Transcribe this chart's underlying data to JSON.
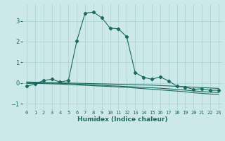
{
  "xlabel": "Humidex (Indice chaleur)",
  "background_color": "#cce8e8",
  "grid_color": "#aed4d4",
  "line_color": "#1a6b5e",
  "line1": [
    -0.15,
    -0.05,
    0.12,
    0.18,
    0.05,
    0.12,
    2.02,
    3.37,
    3.42,
    3.15,
    2.65,
    2.62,
    2.22,
    0.5,
    0.28,
    0.18,
    0.3,
    0.1,
    -0.15,
    -0.2,
    -0.3,
    -0.28,
    -0.35,
    -0.35
  ],
  "line2": [
    0.05,
    0.04,
    0.03,
    0.02,
    0.01,
    0.0,
    -0.01,
    -0.02,
    -0.03,
    -0.04,
    -0.05,
    -0.06,
    -0.07,
    -0.08,
    -0.09,
    -0.1,
    -0.12,
    -0.14,
    -0.16,
    -0.18,
    -0.2,
    -0.22,
    -0.24,
    -0.26
  ],
  "line3": [
    0.02,
    0.01,
    0.0,
    -0.01,
    -0.02,
    -0.03,
    -0.05,
    -0.07,
    -0.09,
    -0.11,
    -0.13,
    -0.15,
    -0.17,
    -0.19,
    -0.21,
    -0.23,
    -0.25,
    -0.28,
    -0.31,
    -0.34,
    -0.38,
    -0.41,
    -0.44,
    -0.46
  ],
  "line4": [
    -0.02,
    -0.02,
    -0.03,
    -0.04,
    -0.05,
    -0.07,
    -0.09,
    -0.11,
    -0.13,
    -0.15,
    -0.17,
    -0.19,
    -0.21,
    -0.24,
    -0.27,
    -0.3,
    -0.33,
    -0.36,
    -0.39,
    -0.42,
    -0.47,
    -0.5,
    -0.53,
    -0.55
  ],
  "xlim": [
    -0.5,
    23.5
  ],
  "ylim": [
    -1.3,
    3.8
  ],
  "yticks": [
    -1,
    0,
    1,
    2,
    3
  ],
  "xticks": [
    0,
    1,
    2,
    3,
    4,
    5,
    6,
    7,
    8,
    9,
    10,
    11,
    12,
    13,
    14,
    15,
    16,
    17,
    18,
    19,
    20,
    21,
    22,
    23
  ],
  "tick_fontsize": 5.0,
  "ylabel_fontsize": 6.0,
  "xlabel_fontsize": 6.5,
  "marker_size": 2.2,
  "linewidth": 0.8
}
